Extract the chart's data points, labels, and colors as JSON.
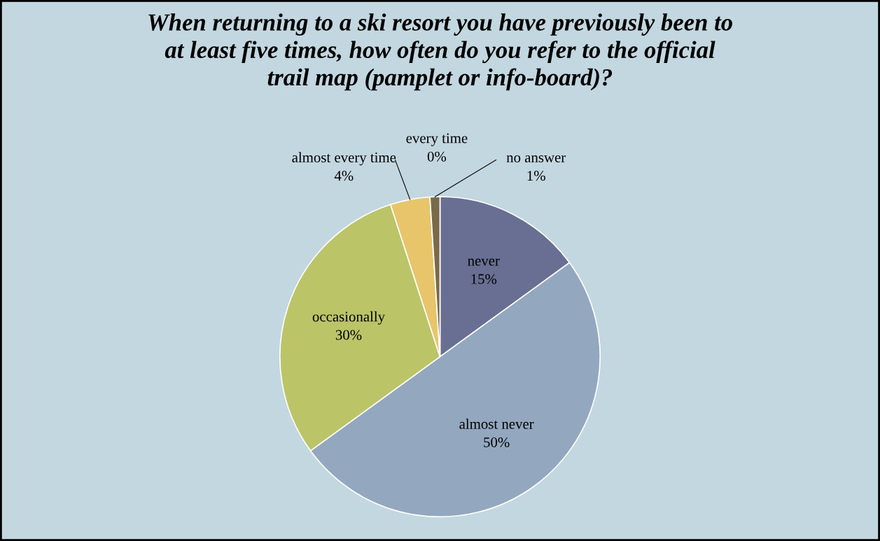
{
  "chart_data": {
    "type": "pie",
    "title": "When returning to a ski resort you have previously been to at least five times, how often do you refer to the official trail map (pamplet or info-board)?",
    "categories": [
      "never",
      "almost never",
      "occasionally",
      "almost every time",
      "every time",
      "no answer"
    ],
    "values": [
      15,
      50,
      30,
      4,
      0,
      1
    ],
    "colors": [
      "#686f93",
      "#93a8bf",
      "#bcc468",
      "#e8c46b",
      "#c9c9c9",
      "#7a6a4a"
    ],
    "value_labels": [
      "15%",
      "50%",
      "30%",
      "4%",
      "0%",
      "1%"
    ],
    "legend": false
  }
}
